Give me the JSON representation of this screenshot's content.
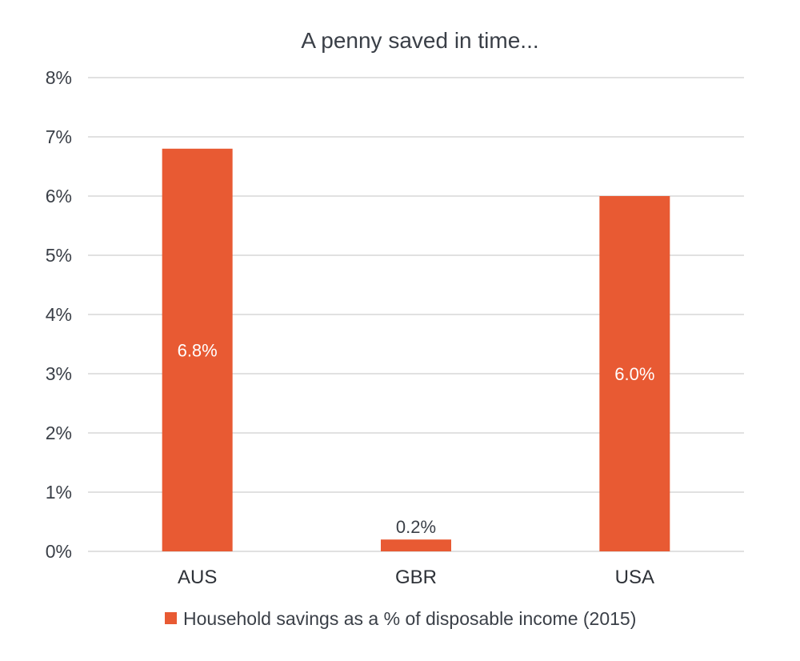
{
  "chart_data": {
    "type": "bar",
    "title": "A penny saved in time...",
    "categories": [
      "AUS",
      "GBR",
      "USA"
    ],
    "series": [
      {
        "name": "Household savings as a % of disposable income (2015)",
        "values": [
          6.8,
          0.2,
          6.0
        ],
        "data_labels": [
          "6.8%",
          "0.2%",
          "6.0%"
        ]
      }
    ],
    "yticks": [
      {
        "value": 0,
        "label": "0%"
      },
      {
        "value": 1,
        "label": "1%"
      },
      {
        "value": 2,
        "label": "2%"
      },
      {
        "value": 3,
        "label": "3%"
      },
      {
        "value": 4,
        "label": "4%"
      },
      {
        "value": 5,
        "label": "5%"
      },
      {
        "value": 6,
        "label": "6%"
      },
      {
        "value": 7,
        "label": "7%"
      },
      {
        "value": 8,
        "label": "8%"
      }
    ],
    "ylim": [
      0,
      8
    ],
    "grid": true,
    "legend_position": "bottom",
    "colors": {
      "bar": "#e85a33",
      "grid": "#cfcfcf",
      "text": "#3a3f47"
    }
  }
}
